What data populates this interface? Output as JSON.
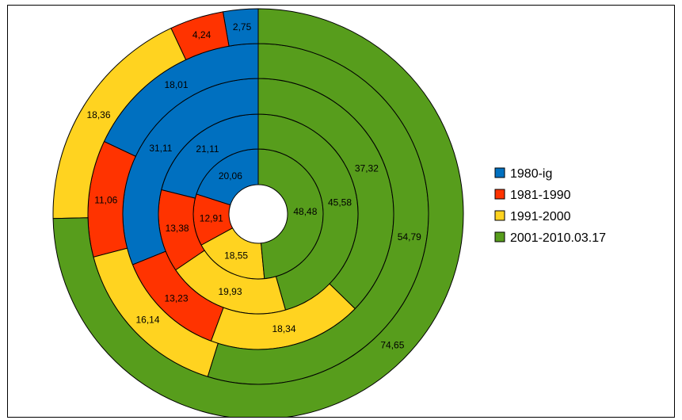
{
  "chart_data": {
    "type": "pie",
    "subtype": "multi-level-donut",
    "title": "",
    "series_names": [
      "1980-ig",
      "1981-1990",
      "1991-2000",
      "2001-2010.03.17"
    ],
    "colors": [
      "#0070c0",
      "#ff3300",
      "#ffd320",
      "#579d1c"
    ],
    "rings": [
      {
        "values": [
          20.06,
          12.91,
          18.55,
          48.48
        ],
        "labels": [
          "20,06",
          "12,91",
          "18,55",
          "48,48"
        ]
      },
      {
        "values": [
          21.11,
          13.38,
          19.93,
          45.58
        ],
        "labels": [
          "21,11",
          "13,38",
          "19,93",
          "45,58"
        ]
      },
      {
        "values": [
          31.11,
          13.23,
          18.34,
          37.32
        ],
        "labels": [
          "31,11",
          "13,23",
          "18,34",
          "37,32"
        ]
      },
      {
        "values": [
          18.01,
          11.06,
          16.14,
          54.79
        ],
        "labels": [
          "18,01",
          "11,06",
          "16,14",
          "54,79"
        ]
      },
      {
        "values": [
          2.75,
          4.24,
          18.36,
          74.65
        ],
        "labels": [
          "2,75",
          "4,24",
          "18,36",
          "74,65"
        ]
      }
    ],
    "legend": {
      "placement": "right",
      "entries": [
        "1980-ig",
        "1981-1990",
        "1991-2000",
        "2001-2010.03.17"
      ]
    }
  }
}
